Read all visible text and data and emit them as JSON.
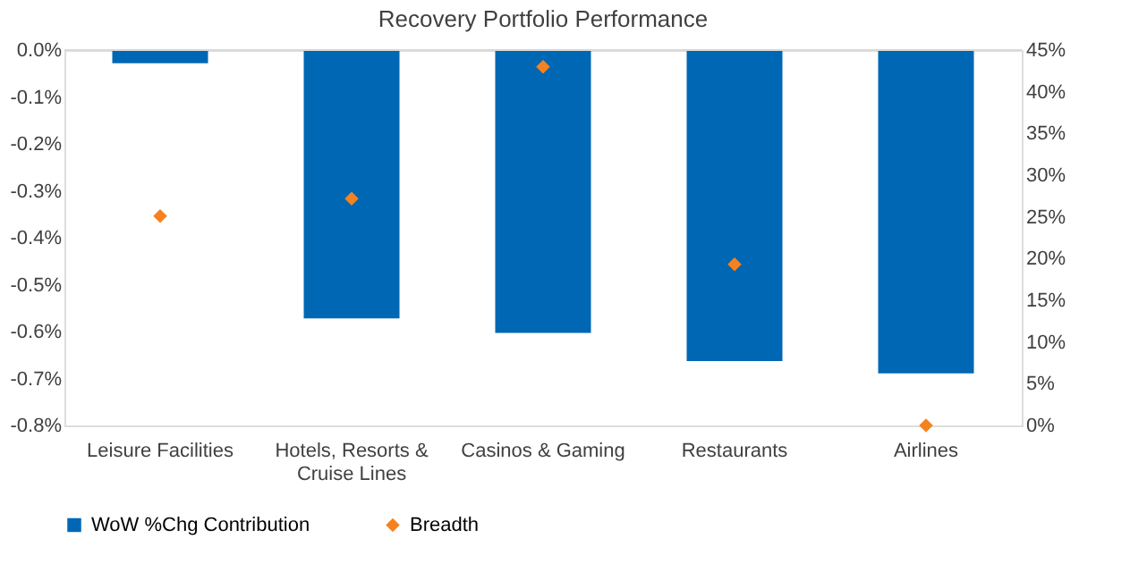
{
  "chart_data": {
    "type": "bar",
    "title": "Recovery Portfolio Performance",
    "categories": [
      "Leisure Facilities",
      "Hotels, Resorts & Cruise Lines",
      "Casinos & Gaming",
      "Restaurants",
      "Airlines"
    ],
    "series": [
      {
        "name": "WoW %Chg Contribution",
        "color": "#0067b4",
        "values": [
          -0.028,
          -0.572,
          -0.603,
          -0.663,
          -0.689
        ]
      },
      {
        "name": "Breadth",
        "type": "scatter",
        "axis": "y2",
        "color": "#f5821f",
        "marker": "diamond",
        "values": [
          25.1,
          27.2,
          43.0,
          19.3,
          0
        ]
      }
    ],
    "ylim": [
      -0.8,
      0
    ],
    "yticks": [
      {
        "value": -0.8,
        "label": "-0.8%"
      },
      {
        "value": -0.7,
        "label": "-0.7%"
      },
      {
        "value": -0.6,
        "label": "-0.6%"
      },
      {
        "value": -0.5,
        "label": "-0.5%"
      },
      {
        "value": -0.4,
        "label": "-0.4%"
      },
      {
        "value": -0.3,
        "label": "-0.3%"
      },
      {
        "value": -0.2,
        "label": "-0.2%"
      },
      {
        "value": -0.1,
        "label": "-0.1%"
      },
      {
        "value": 0,
        "label": "0.0%"
      }
    ],
    "y2lim": [
      0,
      45
    ],
    "y2ticks": [
      {
        "value": 0,
        "label": "0%"
      },
      {
        "value": 5,
        "label": "5%"
      },
      {
        "value": 10,
        "label": "10%"
      },
      {
        "value": 15,
        "label": "15%"
      },
      {
        "value": 20,
        "label": "20%"
      },
      {
        "value": 25,
        "label": "25%"
      },
      {
        "value": 30,
        "label": "30%"
      },
      {
        "value": 35,
        "label": "35%"
      },
      {
        "value": 40,
        "label": "40%"
      },
      {
        "value": 45,
        "label": "45%"
      }
    ],
    "grid": false,
    "legend": "bottom"
  }
}
